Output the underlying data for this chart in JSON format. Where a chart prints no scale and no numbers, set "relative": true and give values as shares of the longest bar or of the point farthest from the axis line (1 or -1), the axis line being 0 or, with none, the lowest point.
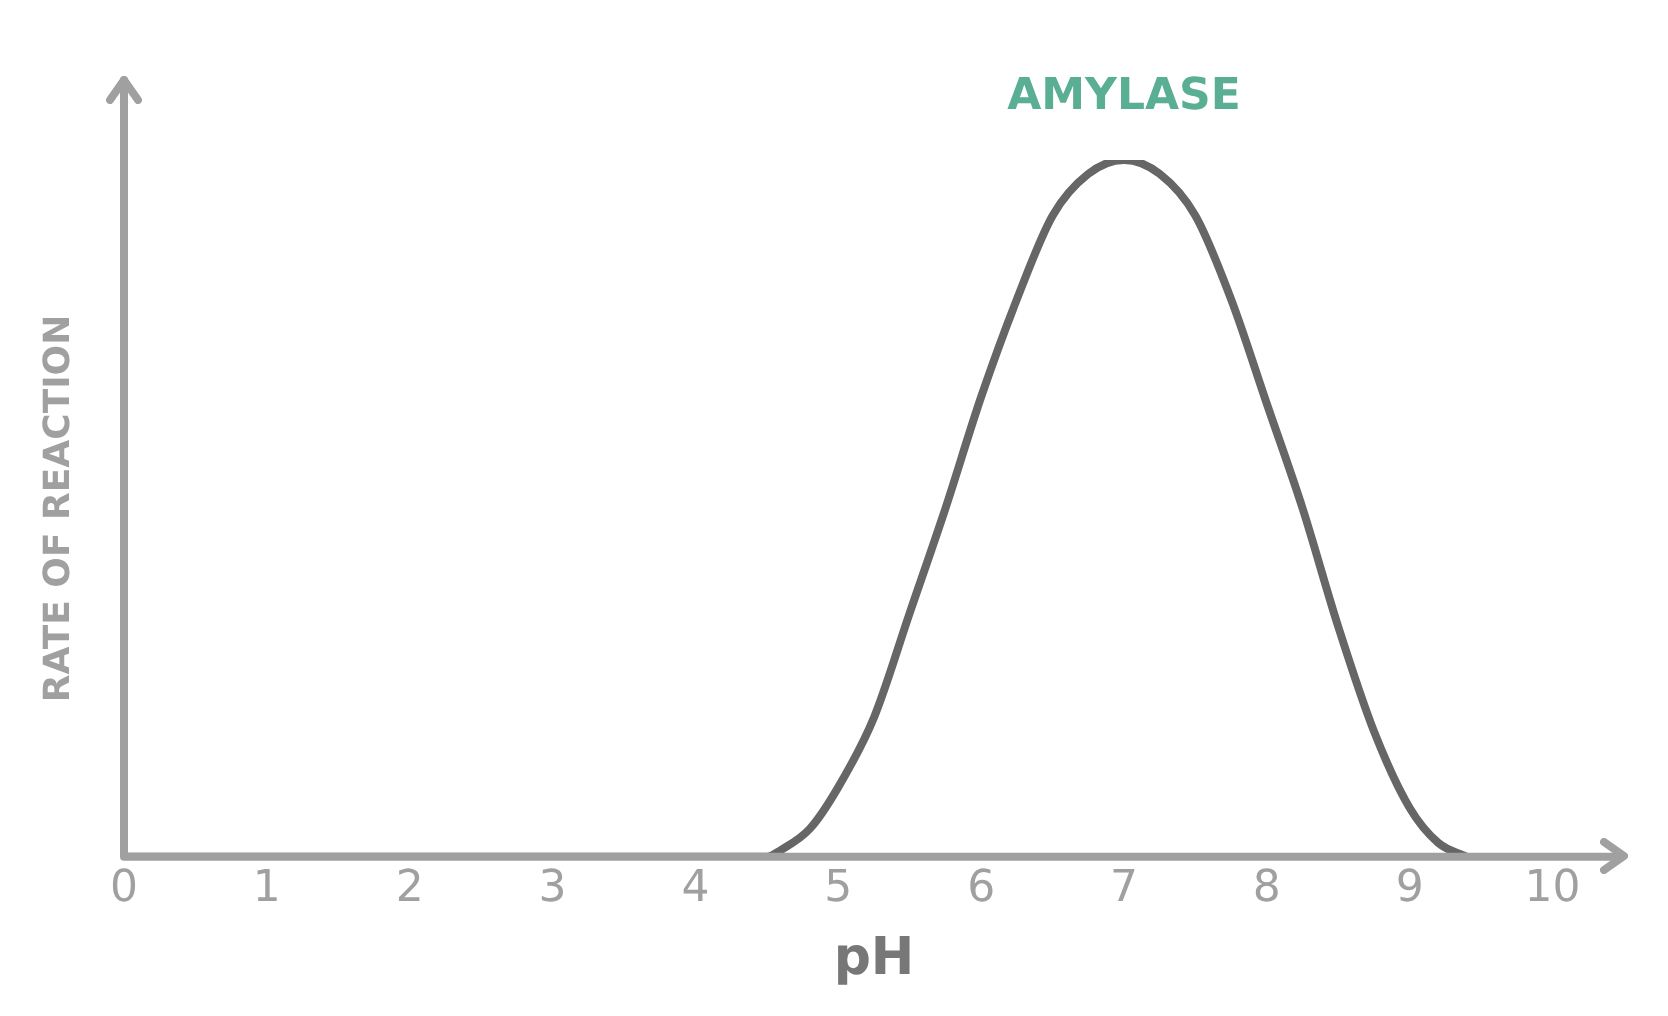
{
  "chart_data": {
    "type": "line",
    "relative": true,
    "xlabel": "pH",
    "ylabel": "RATE OF REACTION",
    "x": [
      0,
      4.5,
      4.6,
      4.8,
      5,
      5.25,
      5.5,
      5.75,
      6,
      6.25,
      6.5,
      6.75,
      7,
      7.25,
      7.5,
      7.75,
      8,
      8.25,
      8.5,
      8.75,
      9,
      9.2,
      9.4
    ],
    "series": [
      {
        "color": "#666666",
        "values": [
          0,
          0,
          0.01,
          0.04,
          0.1,
          0.2,
          0.35,
          0.5,
          0.66,
          0.8,
          0.92,
          0.98,
          1,
          0.98,
          0.92,
          0.8,
          0.65,
          0.5,
          0.33,
          0.18,
          0.07,
          0.02,
          0
        ]
      }
    ],
    "xlim": [
      0,
      10.5
    ],
    "xticks": [
      0,
      1,
      2,
      3,
      4,
      5,
      6,
      7,
      8,
      9,
      10
    ],
    "annotations": [
      {
        "text": "AMYLASE",
        "x": 7,
        "y": 1
      }
    ],
    "grid": false,
    "legend": false,
    "marker": "none",
    "line_style": "solid"
  }
}
